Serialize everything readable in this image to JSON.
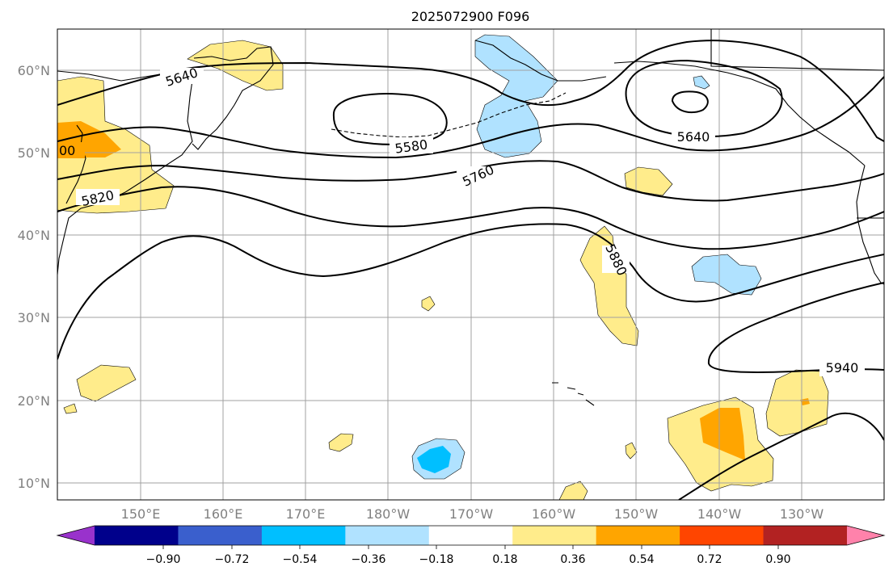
{
  "title": "2025072900 F096",
  "map": {
    "lon_labels": [
      "150°E",
      "160°E",
      "170°E",
      "180°W",
      "170°W",
      "160°W",
      "150°W",
      "140°W",
      "130°W"
    ],
    "lat_labels": [
      "60°N",
      "50°N",
      "40°N",
      "30°N",
      "20°N",
      "10°N"
    ],
    "contour_labels": [
      "5640",
      "5580",
      "5760",
      "5640",
      "5820",
      "5880",
      "5940",
      "00"
    ],
    "contour_color": "#000000",
    "gridline_color": "#a0a0a0"
  },
  "colorbar": {
    "tick_labels": [
      "−0.90",
      "−0.72",
      "−0.54",
      "−0.36",
      "−0.18",
      "0.18",
      "0.36",
      "0.54",
      "0.72",
      "0.90"
    ],
    "colors": [
      "#9932cc",
      "#00008b",
      "#3a5fcd",
      "#00bfff",
      "#b0e2ff",
      "#ffffff",
      "#ffec8b",
      "#ffa500",
      "#ff4500",
      "#b22222",
      "#ff82ab"
    ]
  }
}
